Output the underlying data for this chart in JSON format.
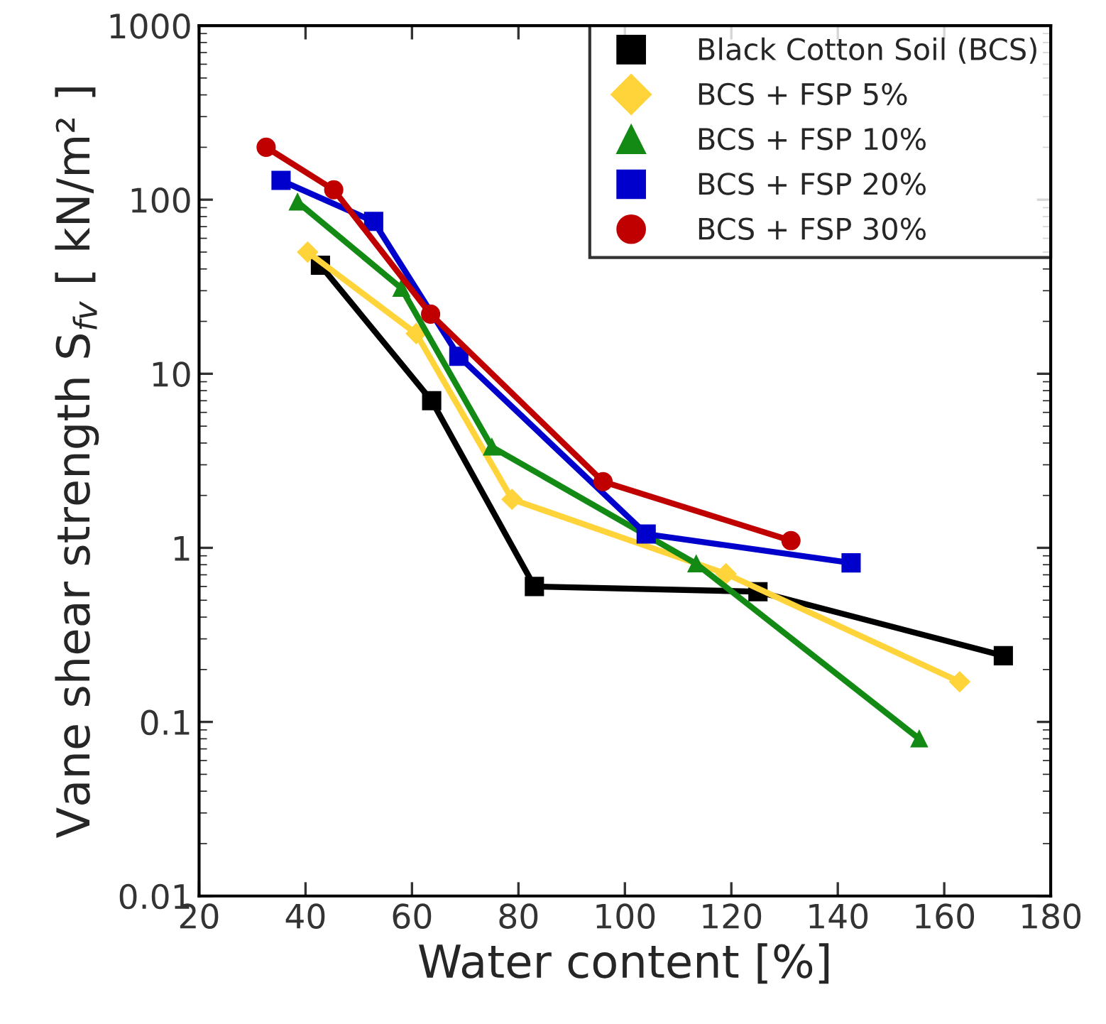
{
  "chart_data": {
    "type": "line",
    "xlabel": "Water content [%]",
    "ylabel": "Vane shear strength S$_{fv}$ [ kN/m² ]",
    "log": true,
    "xlim": [
      20,
      180
    ],
    "xticks": [
      20,
      40,
      60,
      80,
      100,
      120,
      140,
      160,
      180
    ],
    "ylim": [
      0.01,
      1000
    ],
    "yticks": [
      0.01,
      0.1,
      1,
      10,
      100,
      1000
    ],
    "grid": false,
    "legend": "top right",
    "line_style": "solid",
    "series": [
      {
        "name": "Black Cotton Soil (BCS)",
        "color": "#000000",
        "marker": "square",
        "x": [
          42.8,
          63.7,
          83.0,
          125.0,
          171.1
        ],
        "values": [
          42,
          7.0,
          0.6,
          0.56,
          0.24
        ]
      },
      {
        "name": "BCS + FSP 5%",
        "color": "#ffd43b",
        "marker": "diamond",
        "x": [
          40.4,
          60.8,
          78.8,
          119,
          162.9
        ],
        "values": [
          50,
          17,
          1.9,
          0.71,
          0.17
        ]
      },
      {
        "name": "BCS + FSP 10%",
        "color": "#138a13",
        "marker": "triangle",
        "x": [
          38.5,
          58.0,
          75.0,
          113.4,
          155.3
        ],
        "values": [
          97,
          31,
          3.8,
          0.81,
          0.08
        ]
      },
      {
        "name": "BCS + FSP 20%",
        "color": "#0000cc",
        "marker": "square",
        "x": [
          35.4,
          52.8,
          68.8,
          104.0,
          142.5
        ],
        "values": [
          129,
          75,
          12.6,
          1.2,
          0.82
        ]
      },
      {
        "name": "BCS + FSP 30%",
        "color": "#c00000",
        "marker": "circle",
        "x": [
          32.6,
          45.3,
          63.5,
          95.9,
          131.2
        ],
        "values": [
          200,
          114,
          22,
          2.4,
          1.1
        ]
      }
    ]
  }
}
